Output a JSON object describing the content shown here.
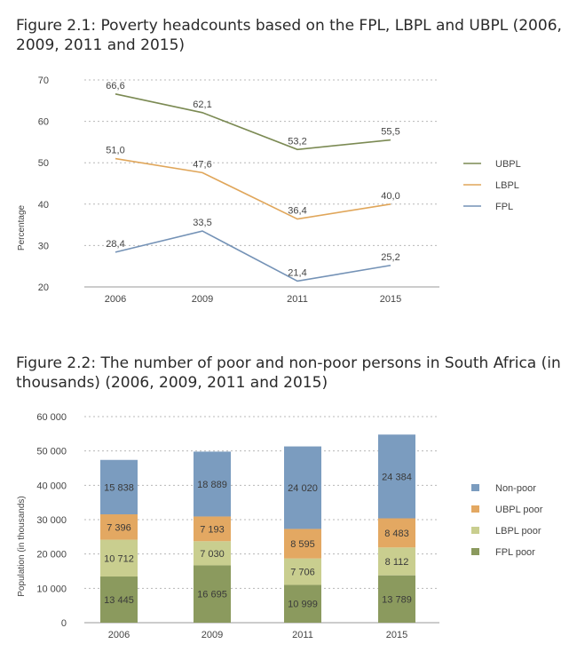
{
  "chart_data": [
    {
      "type": "line",
      "title": "Figure 2.1: Poverty headcounts based on the FPL, LBPL and UBPL (2006, 2009, 2011 and 2015)",
      "ylabel": "Percentage",
      "xlabel": "",
      "categories": [
        "2006",
        "2009",
        "2011",
        "2015"
      ],
      "ylim": [
        20,
        70
      ],
      "yticks": [
        20,
        30,
        40,
        50,
        60,
        70
      ],
      "grid": true,
      "legend_position": "right",
      "series": [
        {
          "name": "UBPL",
          "values": [
            66.6,
            62.1,
            53.2,
            55.5
          ],
          "labels": [
            "66,6",
            "62,1",
            "53,2",
            "55,5"
          ],
          "color": "#7b8a53"
        },
        {
          "name": "LBPL",
          "values": [
            51.0,
            47.6,
            36.4,
            40.0
          ],
          "labels": [
            "51,0",
            "47,6",
            "36,4",
            "40,0"
          ],
          "color": "#e0a65a"
        },
        {
          "name": "FPL",
          "values": [
            28.4,
            33.5,
            21.4,
            25.2
          ],
          "labels": [
            "28,4",
            "33,5",
            "21,4",
            "25,2"
          ],
          "color": "#7492b6"
        }
      ]
    },
    {
      "type": "bar",
      "stacked": true,
      "title": "Figure 2.2: The number of poor and non-poor persons in South Africa (in thousands) (2006, 2009, 2011 and 2015)",
      "ylabel": "Population (in thousands)",
      "xlabel": "",
      "categories": [
        "2006",
        "2009",
        "2011",
        "2015"
      ],
      "ylim": [
        0,
        60000
      ],
      "yticks": [
        0,
        10000,
        20000,
        30000,
        40000,
        50000,
        60000
      ],
      "ytick_labels": [
        "0",
        "10 000",
        "20 000",
        "30 000",
        "40 000",
        "50 000",
        "60 000"
      ],
      "grid": true,
      "legend_position": "right",
      "series": [
        {
          "name": "FPL poor",
          "values": [
            13445,
            16695,
            10999,
            13789
          ],
          "labels": [
            "13 445",
            "16 695",
            "10 999",
            "13 789"
          ],
          "color": "#8b9a5e"
        },
        {
          "name": "LBPL poor",
          "values": [
            10712,
            7030,
            7706,
            8112
          ],
          "labels": [
            "10 712",
            "7 030",
            "7 706",
            "8 112"
          ],
          "color": "#c9ce8f"
        },
        {
          "name": "UBPL poor",
          "values": [
            7396,
            7193,
            8595,
            8483
          ],
          "labels": [
            "7 396",
            "7 193",
            "8 595",
            "8 483"
          ],
          "color": "#e3a862"
        },
        {
          "name": "Non-poor",
          "values": [
            15838,
            18889,
            24020,
            24384
          ],
          "labels": [
            "15 838",
            "18 889",
            "24 020",
            "24 384"
          ],
          "color": "#7b9cbf"
        }
      ],
      "legend_order": [
        "Non-poor",
        "UBPL poor",
        "LBPL poor",
        "FPL poor"
      ]
    }
  ]
}
